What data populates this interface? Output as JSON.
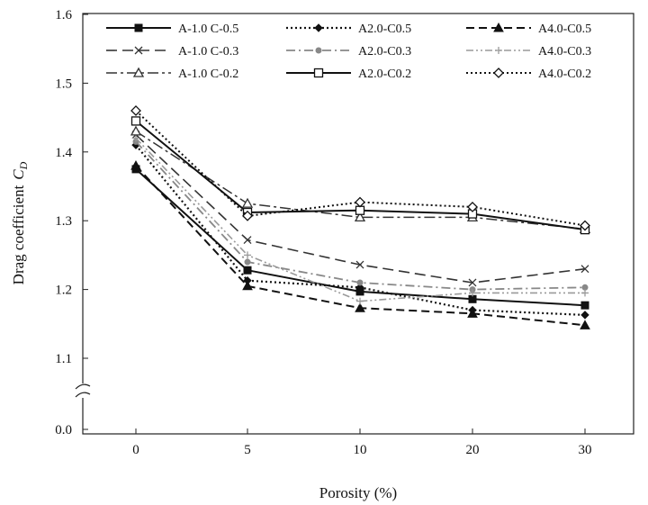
{
  "chart_data": {
    "type": "line",
    "xlabel": "Porosity (%)",
    "ylabel": "Drag coefficient",
    "ylabel_symbol": "C",
    "ylabel_subscript": "D",
    "categories": [
      "0",
      "5",
      "10",
      "20",
      "30"
    ],
    "y_ticks": [
      "0.0",
      "1.1",
      "1.2",
      "1.3",
      "1.4",
      "1.5",
      "1.6"
    ],
    "y_break": true,
    "ylim": [
      1.05,
      1.6
    ],
    "legend_position": "top",
    "grid": false,
    "series": [
      {
        "name": "A-1.0 C-0.5",
        "values": [
          1.375,
          1.228,
          1.197,
          1.186,
          1.177
        ],
        "color": "#111111",
        "dash": "",
        "width": 2.0,
        "marker": "square-filled"
      },
      {
        "name": "A2.0-C0.5",
        "values": [
          1.41,
          1.213,
          1.203,
          1.17,
          1.163
        ],
        "color": "#111111",
        "dash": "2,3",
        "width": 2.2,
        "marker": "diamond-filled"
      },
      {
        "name": "A4.0-C0.5",
        "values": [
          1.38,
          1.205,
          1.173,
          1.165,
          1.148
        ],
        "color": "#111111",
        "dash": "9,5",
        "width": 2.0,
        "marker": "triangle-filled"
      },
      {
        "name": "A-1.0 C-0.3",
        "values": [
          1.425,
          1.272,
          1.236,
          1.21,
          1.23
        ],
        "color": "#333333",
        "dash": "12,6",
        "width": 1.6,
        "marker": "x"
      },
      {
        "name": "A2.0-C0.3",
        "values": [
          1.415,
          1.24,
          1.21,
          1.2,
          1.203
        ],
        "color": "#888888",
        "dash": "10,4,2,4",
        "width": 1.8,
        "marker": "circle-filled"
      },
      {
        "name": "A4.0-C0.3",
        "values": [
          1.42,
          1.25,
          1.183,
          1.195,
          1.195
        ],
        "color": "#9a9a9a",
        "dash": "8,3,2,3,2,3",
        "width": 1.6,
        "marker": "plus"
      },
      {
        "name": "A-1.0 C-0.2",
        "values": [
          1.43,
          1.325,
          1.305,
          1.305,
          1.288
        ],
        "color": "#333333",
        "dash": "12,4,3,4",
        "width": 1.5,
        "marker": "triangle-open"
      },
      {
        "name": "A2.0-C0.2",
        "values": [
          1.445,
          1.312,
          1.315,
          1.31,
          1.287
        ],
        "color": "#111111",
        "dash": "",
        "width": 2.0,
        "marker": "square-open"
      },
      {
        "name": "A4.0-C0.2",
        "values": [
          1.46,
          1.307,
          1.327,
          1.32,
          1.293
        ],
        "color": "#111111",
        "dash": "2,3",
        "width": 2.0,
        "marker": "diamond-open"
      }
    ]
  }
}
